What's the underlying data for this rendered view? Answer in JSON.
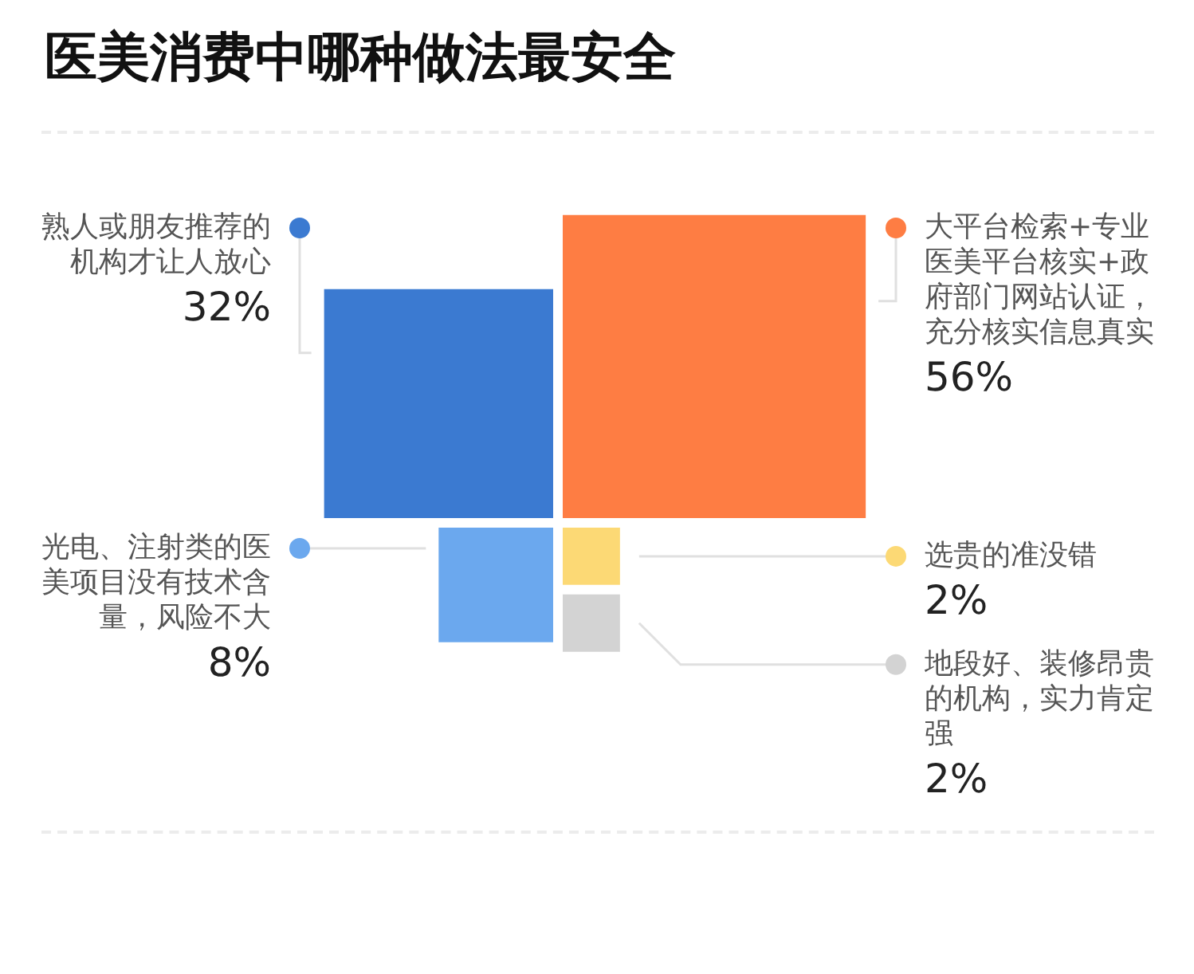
{
  "chart_data": {
    "type": "other",
    "title": "医美消费中哪种做法最安全",
    "categories": [
      "熟人或朋友推荐的机构才让人放心",
      "大平台检索+专业医美平台核实+政府部门网站认证，充分核实信息真实",
      "光电、注射类的医美项目没有技术含量，风险不大",
      "选贵的准没错",
      "地段好、装修昂贵的机构，实力肯定强"
    ],
    "values": [
      32,
      56,
      8,
      2,
      2
    ],
    "value_labels": [
      "32%",
      "56%",
      "8%",
      "2%",
      "2%"
    ],
    "colors": [
      "#3b7ad1",
      "#fe7d43",
      "#6ba8ee",
      "#fcd975",
      "#d3d3d3"
    ]
  }
}
